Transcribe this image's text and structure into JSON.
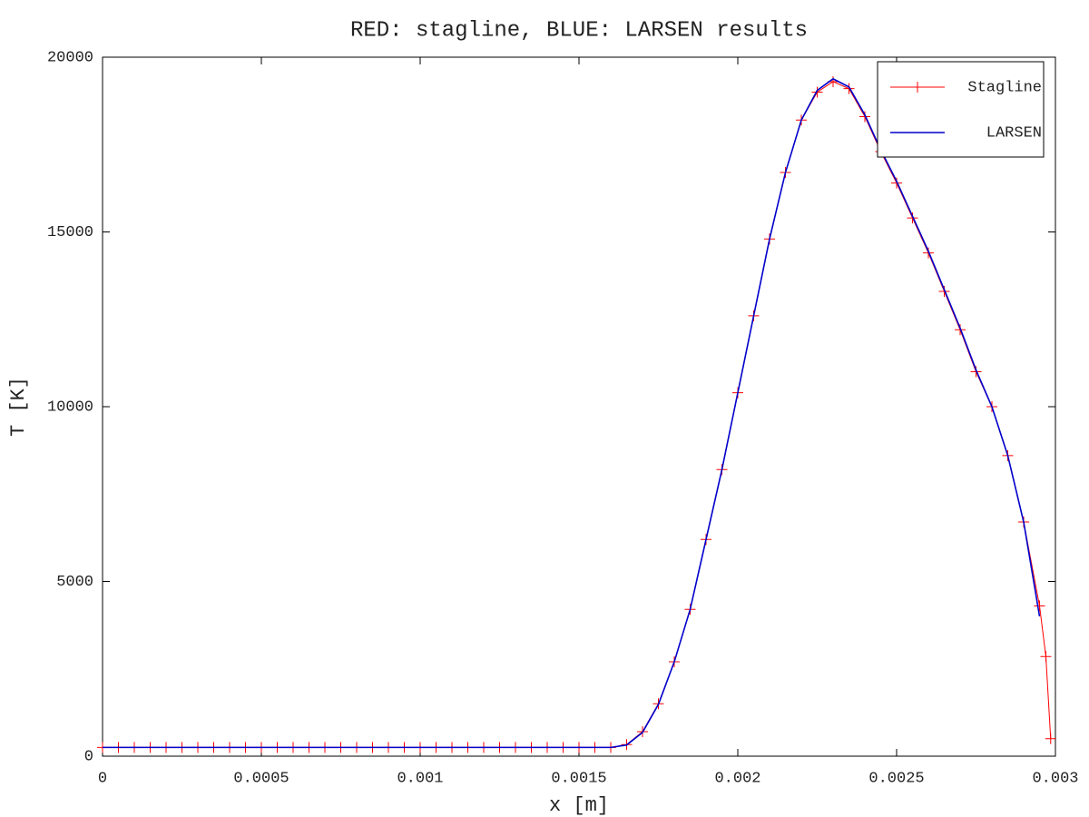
{
  "chart_data": {
    "type": "line",
    "title": "RED: stagline, BLUE: LARSEN results",
    "x_label": "x [m]",
    "y_label": "T [K]",
    "xlim": [
      0,
      0.003
    ],
    "ylim": [
      0,
      20000
    ],
    "xticks": [
      0,
      0.0005,
      0.001,
      0.0015,
      0.002,
      0.0025,
      0.003
    ],
    "yticks": [
      0,
      5000,
      10000,
      15000,
      20000
    ],
    "legend": "upper right",
    "series": [
      {
        "name": "Stagline",
        "color": "#ff0000",
        "marker": "+",
        "x": [
          0,
          5e-05,
          0.0001,
          0.00015,
          0.0002,
          0.00025,
          0.0003,
          0.00035,
          0.0004,
          0.00045,
          0.0005,
          0.00055,
          0.0006,
          0.00065,
          0.0007,
          0.00075,
          0.0008,
          0.00085,
          0.0009,
          0.00095,
          0.001,
          0.00105,
          0.0011,
          0.00115,
          0.0012,
          0.00125,
          0.0013,
          0.00135,
          0.0014,
          0.00145,
          0.0015,
          0.00155,
          0.0016,
          0.00165,
          0.0017,
          0.00175,
          0.0018,
          0.00185,
          0.0019,
          0.00195,
          0.002,
          0.00205,
          0.0021,
          0.00215,
          0.0022,
          0.00225,
          0.0023,
          0.00235,
          0.0024,
          0.00245,
          0.0025,
          0.00255,
          0.0026,
          0.00265,
          0.0027,
          0.00275,
          0.0028,
          0.00285,
          0.0029,
          0.00295,
          0.00297,
          0.002985
        ],
        "values": [
          250,
          250,
          250,
          250,
          250,
          250,
          250,
          250,
          250,
          250,
          250,
          250,
          250,
          250,
          250,
          250,
          250,
          250,
          250,
          250,
          250,
          250,
          250,
          250,
          250,
          250,
          250,
          250,
          250,
          250,
          250,
          250,
          250,
          330,
          700,
          1500,
          2700,
          4200,
          6200,
          8200,
          10400,
          12600,
          14800,
          16700,
          18200,
          19000,
          19300,
          19100,
          18300,
          17300,
          16400,
          15400,
          14400,
          13300,
          12200,
          11000,
          10000,
          8600,
          6700,
          4300,
          2850,
          500
        ]
      },
      {
        "name": "LARSEN",
        "color": "#0000cc",
        "marker": "none",
        "x": [
          0,
          5e-05,
          0.0001,
          0.00015,
          0.0002,
          0.00025,
          0.0003,
          0.00035,
          0.0004,
          0.00045,
          0.0005,
          0.00055,
          0.0006,
          0.00065,
          0.0007,
          0.00075,
          0.0008,
          0.00085,
          0.0009,
          0.00095,
          0.001,
          0.00105,
          0.0011,
          0.00115,
          0.0012,
          0.00125,
          0.0013,
          0.00135,
          0.0014,
          0.00145,
          0.0015,
          0.00155,
          0.0016,
          0.00165,
          0.0017,
          0.00175,
          0.0018,
          0.00185,
          0.0019,
          0.00195,
          0.002,
          0.00205,
          0.0021,
          0.00215,
          0.0022,
          0.00225,
          0.0023,
          0.00235,
          0.0024,
          0.00245,
          0.0025,
          0.00255,
          0.0026,
          0.00265,
          0.0027,
          0.00275,
          0.0028,
          0.00285,
          0.0029,
          0.00295
        ],
        "values": [
          250,
          250,
          250,
          250,
          250,
          250,
          250,
          250,
          250,
          250,
          250,
          250,
          250,
          250,
          250,
          250,
          250,
          250,
          250,
          250,
          250,
          250,
          250,
          250,
          250,
          250,
          250,
          250,
          250,
          250,
          250,
          250,
          250,
          320,
          680,
          1480,
          2700,
          4200,
          6200,
          8200,
          10400,
          12600,
          14800,
          16700,
          18200,
          19050,
          19380,
          19150,
          18350,
          17350,
          16450,
          15450,
          14450,
          13350,
          12250,
          11050,
          10000,
          8600,
          6700,
          4000
        ]
      }
    ]
  }
}
